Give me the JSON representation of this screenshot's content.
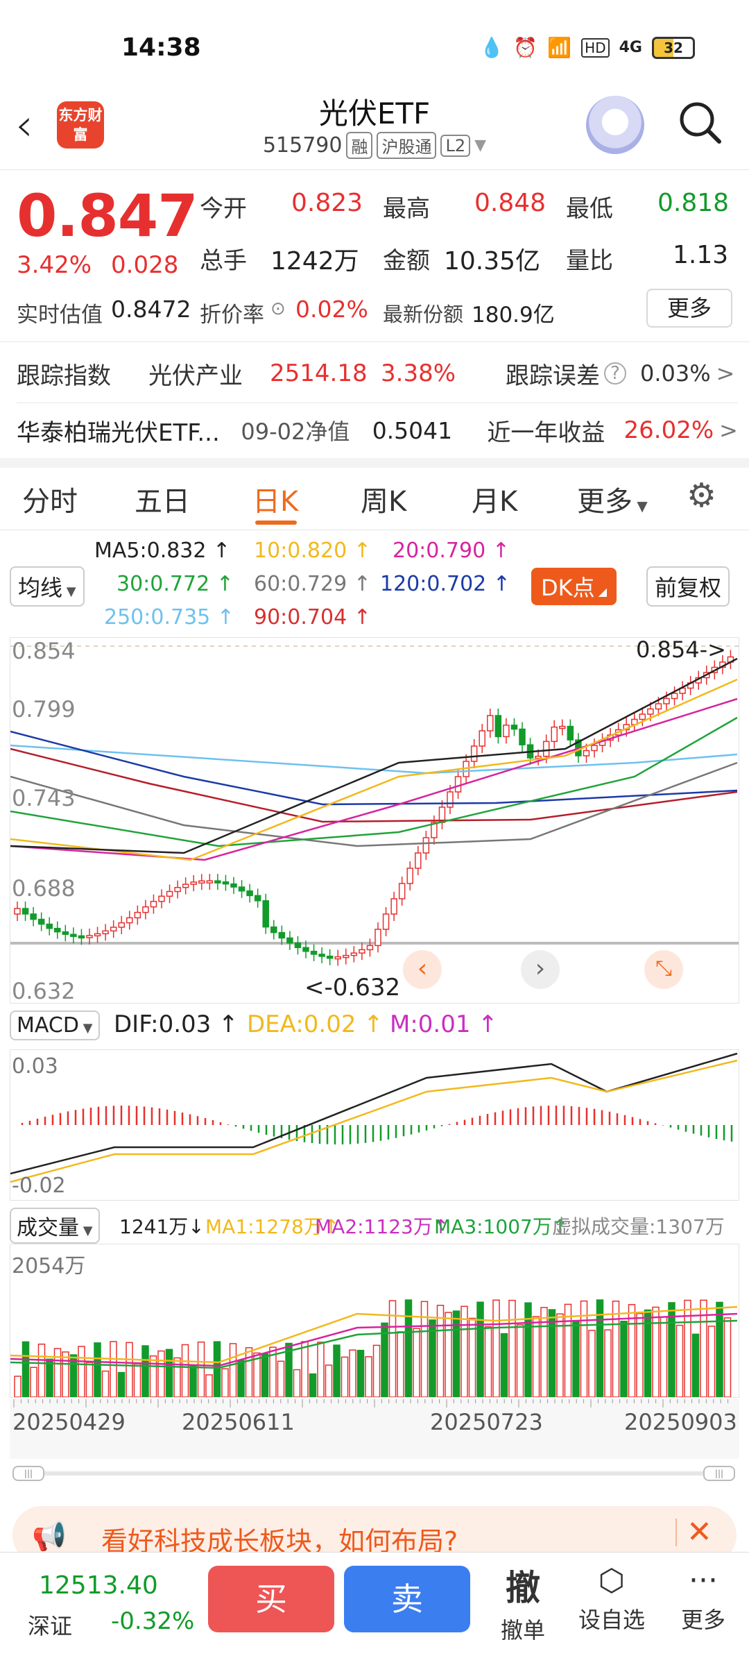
{
  "status": {
    "time": "14:38",
    "battery": "32",
    "network": "4G"
  },
  "header": {
    "back": "‹",
    "logo": "东方财富",
    "title": "光伏ETF",
    "code": "515790",
    "tag1": "融",
    "tag2": "沪股通",
    "tag3": "L2"
  },
  "quote": {
    "price": "0.847",
    "change_pct": "3.42%",
    "change": "0.028",
    "open_label": "今开",
    "open": "0.823",
    "high_label": "最高",
    "high": "0.848",
    "low_label": "最低",
    "low": "0.818",
    "volume_label": "总手",
    "volume": "1242万",
    "amount_label": "金额",
    "amount": "10.35亿",
    "ratio_label": "量比",
    "ratio": "1.13",
    "iopv_label": "实时估值",
    "iopv": "0.8472",
    "premium_label": "折价率",
    "premium": "0.02%",
    "shares_label": "最新份额",
    "shares": "180.9亿",
    "more": "更多"
  },
  "tracking": {
    "label": "跟踪指数",
    "index_name": "光伏产业",
    "index_value": "2514.18",
    "index_pct": "3.38%",
    "error_label": "跟踪误差",
    "error_value": "0.03%"
  },
  "fund": {
    "name": "华泰柏瑞光伏ETF...",
    "nav_label": "09-02净值",
    "nav": "0.5041",
    "year_label": "近一年收益",
    "year_value": "26.02%"
  },
  "tabs": [
    "分时",
    "五日",
    "日K",
    "周K",
    "月K",
    "更多"
  ],
  "ma_legend": {
    "selector": "均线",
    "ma5": "MA5:0.832",
    "ma10": "10:0.820",
    "ma20": "20:0.790",
    "ma30": "30:0.772",
    "ma60": "60:0.729",
    "ma120": "120:0.702",
    "ma250": "250:0.735",
    "ma90": "90:0.704",
    "dk": "DK点",
    "adjust": "前复权"
  },
  "kline": {
    "y_labels": [
      "0.854",
      "0.799",
      "0.743",
      "0.688",
      "0.632"
    ],
    "high_mark": "0.854->",
    "low_mark": "<-0.632",
    "colors": {
      "up": "#e6302f",
      "down": "#129b2a",
      "ma5": "#222222",
      "ma10": "#f2b81c",
      "ma20": "#d6249f",
      "ma30": "#1fa33a",
      "ma60": "#777777",
      "ma120": "#1c3aa8",
      "ma250": "#6ec1ee",
      "ma90": "#b51e2a"
    }
  },
  "macd": {
    "selector": "MACD",
    "dif": "DIF:0.03",
    "dea": "DEA:0.02",
    "m": "M:0.01",
    "y_top": "0.03",
    "y_bottom": "-0.02"
  },
  "vol": {
    "selector": "成交量",
    "value": "1241万",
    "ma1": "MA1:1278万",
    "ma2": "MA2:1123万",
    "ma3": "MA3:1007万",
    "virtual": "虚拟成交量:1307万",
    "y_top": "2054万"
  },
  "dates": [
    "20250429",
    "20250611",
    "20250723",
    "20250903"
  ],
  "banner": {
    "text": "看好科技成长板块，如何布局?"
  },
  "bottom": {
    "index_value": "12513.40",
    "index_name": "深证",
    "index_pct": "-0.32%",
    "buy": "买",
    "sell": "卖",
    "cancel_icon": "撤",
    "cancel": "撤单",
    "watch": "设自选",
    "more": "更多"
  }
}
